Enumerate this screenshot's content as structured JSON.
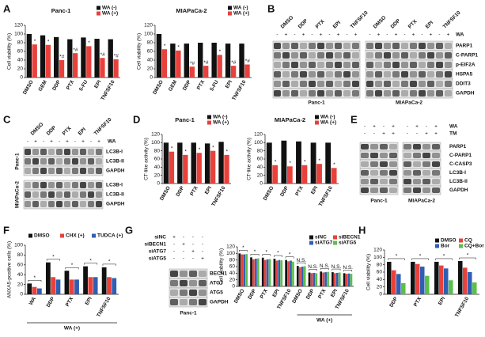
{
  "panel_labels": [
    "A",
    "B",
    "C",
    "D",
    "E",
    "F",
    "G",
    "H"
  ],
  "chart_data": [
    {
      "type": "bar",
      "title": "Panc-1",
      "y_label": "Cell viability (%)",
      "legend": "top-right",
      "categories": [
        "DMSO",
        "GEM",
        "DDP",
        "PTX",
        "5-FU",
        "EPI",
        "TNFSF10"
      ],
      "series": [
        {
          "name": "WA (-)",
          "color": "#111111",
          "values": [
            100,
            97,
            93,
            88,
            92,
            89,
            88
          ]
        },
        {
          "name": "WA (+)",
          "color": "#e8413c",
          "values": [
            76,
            75,
            40,
            56,
            72,
            45,
            42
          ],
          "annotations": [
            "*",
            "*",
            "*#",
            "*#",
            "*",
            "*#",
            "*#"
          ]
        }
      ],
      "ylim": [
        0,
        120
      ],
      "yticks": [
        0,
        20,
        40,
        60,
        80,
        100,
        120
      ]
    },
    {
      "type": "bar",
      "title": "MIAPaCa-2",
      "y_label": "Cell viability (%)",
      "legend": "top-right",
      "categories": [
        "DMSO",
        "GEM",
        "DDP",
        "PTX",
        "5-FU",
        "EPI",
        "TNFSF10"
      ],
      "series": [
        {
          "name": "WA (-)",
          "color": "#111111",
          "values": [
            100,
            78,
            78,
            80,
            80,
            78,
            78
          ]
        },
        {
          "name": "WA (+)",
          "color": "#e8413c",
          "values": [
            65,
            62,
            25,
            27,
            52,
            27,
            30
          ],
          "annotations": [
            "*",
            "*",
            "*#",
            "*#",
            "*",
            "*#",
            "*#"
          ]
        }
      ],
      "ylim": [
        0,
        120
      ],
      "yticks": [
        0,
        20,
        40,
        60,
        80,
        100,
        120
      ]
    },
    {
      "type": "bar",
      "title": "Panc-1",
      "y_label": "CT-like activity (%)",
      "legend": "top-right",
      "categories": [
        "DMSO",
        "DDP",
        "PTX",
        "EPI",
        "TNFSF10"
      ],
      "series": [
        {
          "name": "WA (-)",
          "color": "#111111",
          "values": [
            100,
            100,
            100,
            98,
            102
          ]
        },
        {
          "name": "WA (+)",
          "color": "#e8413c",
          "values": [
            78,
            70,
            75,
            80,
            70
          ],
          "annotations": [
            "*",
            "*",
            "*",
            "*",
            "*"
          ]
        }
      ],
      "ylim": [
        0,
        120
      ],
      "yticks": [
        0,
        20,
        40,
        60,
        80,
        100,
        120
      ]
    },
    {
      "type": "bar",
      "title": "MIAPaCa-2",
      "y_label": "CT-like activity (%)",
      "legend": "top-right",
      "categories": [
        "DMSO",
        "DDP",
        "PTX",
        "EPI",
        "TNFSF10"
      ],
      "series": [
        {
          "name": "WA (-)",
          "color": "#111111",
          "values": [
            100,
            105,
            103,
            100,
            100
          ]
        },
        {
          "name": "WA (+)",
          "color": "#e8413c",
          "values": [
            45,
            42,
            45,
            48,
            38
          ],
          "annotations": [
            "*",
            "*",
            "*",
            "*",
            "*"
          ]
        }
      ],
      "ylim": [
        0,
        120
      ],
      "yticks": [
        0,
        20,
        40,
        60,
        80,
        100,
        120
      ]
    },
    {
      "type": "bar",
      "y_label": "ANXA5-positive cells (%)",
      "legend": "top",
      "group_label": "WA (+)",
      "categories": [
        "WA",
        "DDP",
        "PTX",
        "EPI",
        "TNFSF10"
      ],
      "series": [
        {
          "name": "DMSO",
          "color": "#111111",
          "values": [
            22,
            65,
            48,
            57,
            55
          ]
        },
        {
          "name": "CHX (+)",
          "color": "#e8413c",
          "values": [
            15,
            35,
            30,
            35,
            35
          ]
        },
        {
          "name": "TUDCA (+)",
          "color": "#2f5fb3",
          "values": [
            12,
            30,
            30,
            35,
            33
          ]
        }
      ],
      "group_annotations": [
        "*",
        "*",
        "*",
        "*",
        "*"
      ],
      "ylim": [
        0,
        100
      ],
      "yticks": [
        0,
        20,
        40,
        60,
        80,
        100
      ]
    },
    {
      "type": "bar",
      "y_label": "Cell viability (%)",
      "legend": "top-right",
      "group_label": "WA (+)",
      "categories": [
        "DMSO",
        "DDP",
        "PTX",
        "EPI",
        "TNFSF10",
        "DMSO",
        "DDP",
        "PTX",
        "EPI",
        "TNFSF10"
      ],
      "series": [
        {
          "name": "siNC",
          "color": "#111111",
          "values": [
            100,
            88,
            87,
            84,
            80,
            62,
            42,
            45,
            43,
            40
          ]
        },
        {
          "name": "siBECN1",
          "color": "#e8413c",
          "values": [
            97,
            82,
            80,
            78,
            76,
            58,
            40,
            42,
            40,
            38
          ]
        },
        {
          "name": "siATG7",
          "color": "#2f5fb3",
          "values": [
            97,
            84,
            82,
            80,
            78,
            60,
            41,
            43,
            41,
            39
          ]
        },
        {
          "name": "siATG5",
          "color": "#5bbf4a",
          "values": [
            98,
            85,
            83,
            79,
            75,
            61,
            40,
            44,
            42,
            38
          ]
        }
      ],
      "group_annotations": [
        "*",
        "*",
        "*",
        "*",
        "*",
        "N.S.",
        "N.S.",
        "N.S.",
        "N.S.",
        "N.S."
      ],
      "ylim": [
        0,
        120
      ],
      "yticks": [
        0,
        20,
        40,
        60,
        80,
        100,
        120
      ]
    },
    {
      "type": "bar",
      "y_label": "Cell viability (%)",
      "legend": "top-right",
      "categories": [
        "DDP",
        "PTX",
        "EPI",
        "TNFSF10"
      ],
      "series": [
        {
          "name": "DMSO",
          "color": "#111111",
          "values": [
            88,
            88,
            88,
            90
          ]
        },
        {
          "name": "CQ",
          "color": "#e8413c",
          "values": [
            65,
            82,
            78,
            72
          ]
        },
        {
          "name": "Bor",
          "color": "#2f5fb3",
          "values": [
            55,
            75,
            70,
            60
          ]
        },
        {
          "name": "CQ+Bor",
          "color": "#5bbf4a",
          "values": [
            30,
            50,
            38,
            32
          ]
        }
      ],
      "group_annotations": [
        "*",
        "*",
        "*",
        "*"
      ],
      "ylim": [
        0,
        120
      ],
      "yticks": [
        0,
        20,
        40,
        60,
        80,
        100,
        120
      ]
    }
  ],
  "blots": {
    "B": {
      "header": "WA",
      "lanes": [
        "DMSO",
        "DDP",
        "PTX",
        "EPI",
        "TNFSF10"
      ],
      "signs": [
        "-",
        "+",
        "-",
        "+",
        "-",
        "+",
        "-",
        "+",
        "-",
        "+"
      ],
      "groups": [
        "Panc-1",
        "MIAPaCa-2"
      ],
      "rows": [
        "PARP1",
        "C-PARP1",
        "p-EIF2A",
        "HSPA5",
        "DDIT3",
        "GAPDH"
      ]
    },
    "C": {
      "header": "WA",
      "lanes": [
        "DMSO",
        "DDP",
        "PTX",
        "EPI",
        "TNFSF10"
      ],
      "signs": [
        "-",
        "+",
        "-",
        "+",
        "-",
        "+",
        "-",
        "+",
        "-",
        "+"
      ],
      "groups": [
        {
          "name": "Panc-1",
          "rows": [
            "LC3B-I",
            "LC3B-II",
            "GAPDH"
          ]
        },
        {
          "name": "MIAPaCa-2",
          "rows": [
            "LC3B-I",
            "LC3B-II",
            "GAPDH"
          ]
        }
      ]
    },
    "E": {
      "conditions": [
        {
          "name": "WA",
          "signs": [
            "-",
            "+",
            "-",
            "+",
            "-",
            "+",
            "-",
            "+"
          ]
        },
        {
          "name": "TM",
          "signs": [
            "-",
            "-",
            "+",
            "+",
            "-",
            "-",
            "+",
            "+"
          ]
        }
      ],
      "groups": [
        "Panc-1",
        "MIAPaCa-2"
      ],
      "rows": [
        "PARP1",
        "C-PARP1",
        "C-CASP3",
        "LC3B-I",
        "LC3B-II",
        "GAPDH"
      ]
    },
    "G": {
      "conditions": [
        {
          "name": "siNC",
          "signs": [
            "+",
            "-",
            "-",
            "-"
          ]
        },
        {
          "name": "siBECN1",
          "signs": [
            "-",
            "+",
            "-",
            "-"
          ]
        },
        {
          "name": "siATG7",
          "signs": [
            "-",
            "-",
            "+",
            "-"
          ]
        },
        {
          "name": "siATG5",
          "signs": [
            "-",
            "-",
            "-",
            "+"
          ]
        }
      ],
      "group": "Panc-1",
      "rows": [
        "BECN1",
        "ATG7",
        "ATG5",
        "GAPDH"
      ]
    }
  }
}
